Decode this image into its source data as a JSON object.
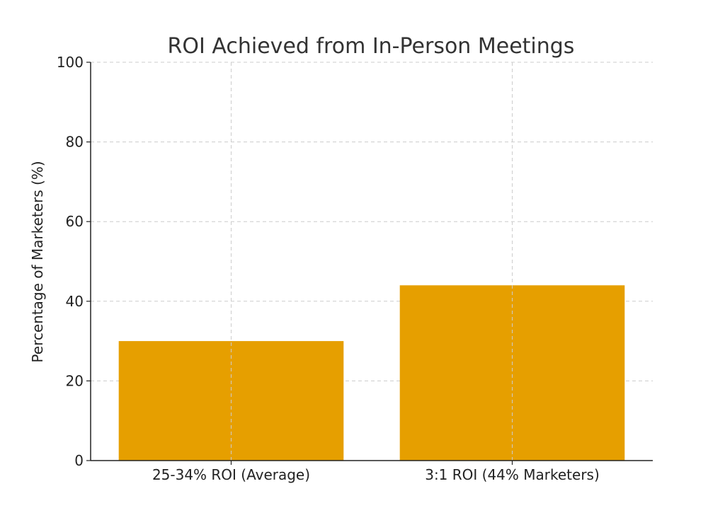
{
  "chart_data": {
    "type": "bar",
    "title": "ROI Achieved from In-Person Meetings",
    "xlabel": "",
    "ylabel": "Percentage of Marketers (%)",
    "categories": [
      "25-34% ROI (Average)",
      "3:1 ROI (44% Marketers)"
    ],
    "values": [
      30,
      44
    ],
    "ylim": [
      0,
      100
    ],
    "yticks": [
      0,
      20,
      40,
      60,
      80,
      100
    ],
    "grid": true,
    "colors": {
      "bar": "#E69F00"
    }
  }
}
